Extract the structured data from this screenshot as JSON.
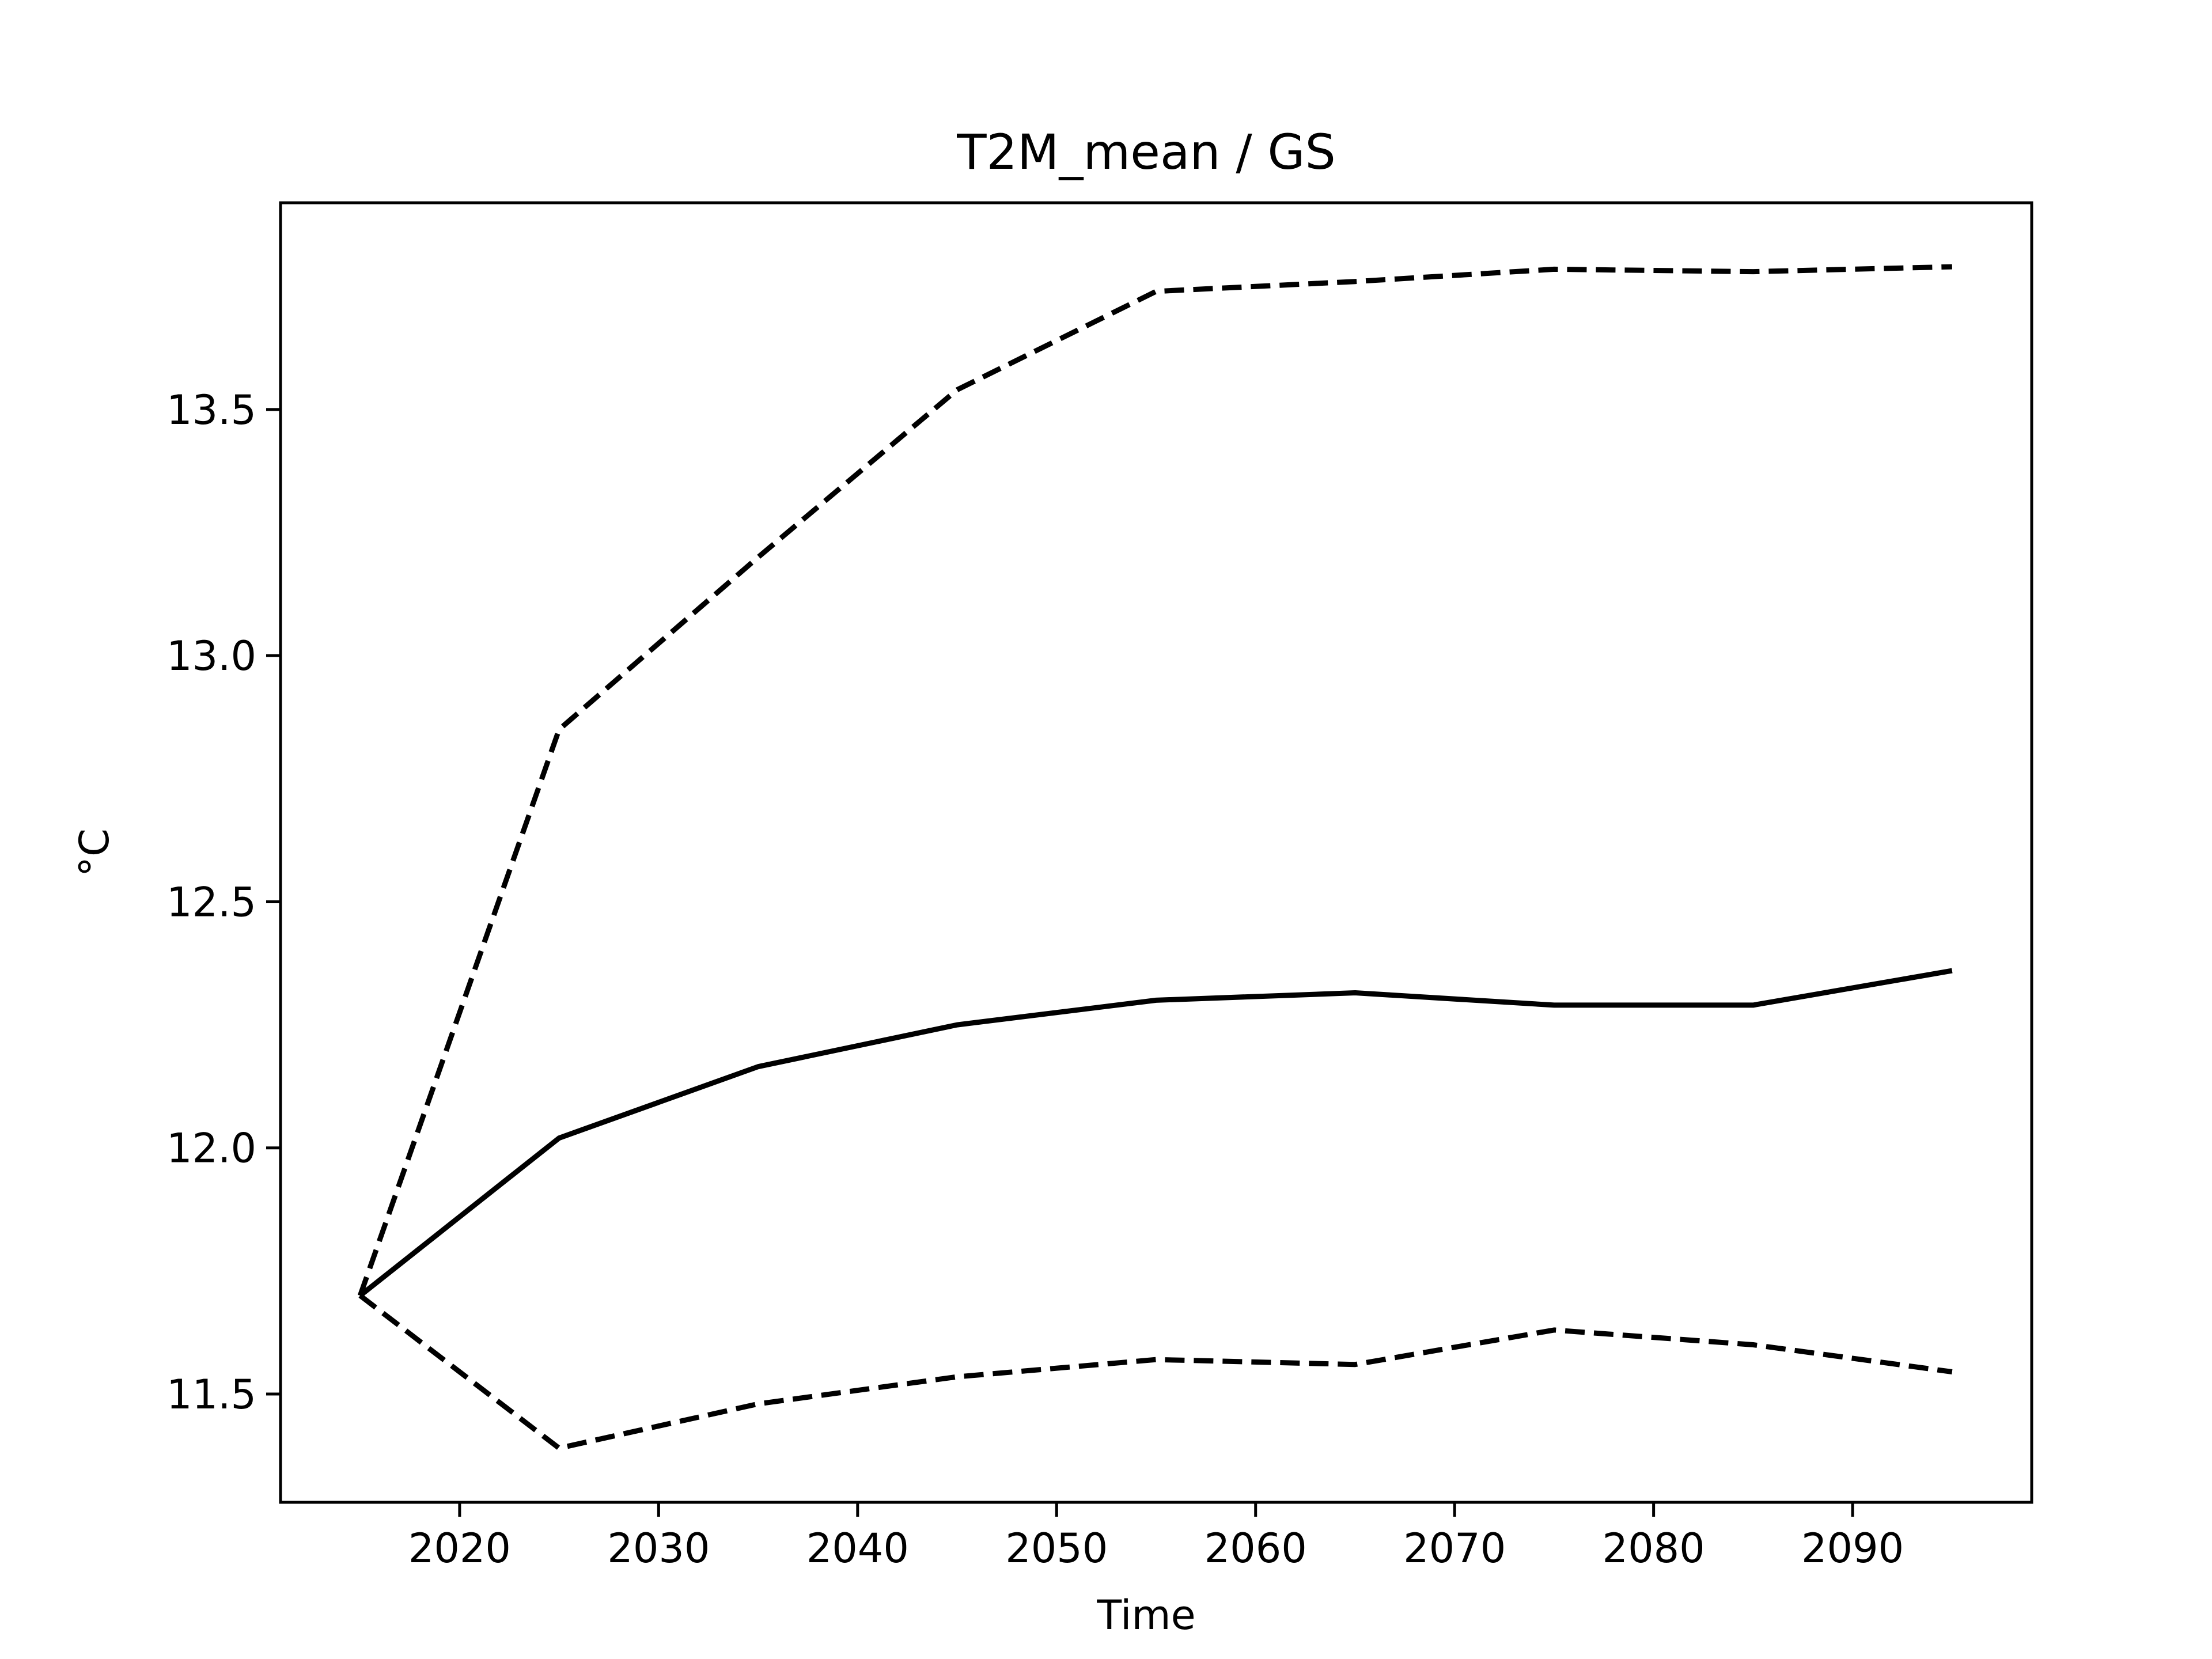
{
  "chart_data": {
    "type": "line",
    "title": "T2M_mean / GS",
    "xlabel": "Time",
    "ylabel": "°C",
    "xlim": [
      2011,
      2099
    ],
    "ylim": [
      11.28,
      13.92
    ],
    "xticks": [
      2020,
      2030,
      2040,
      2050,
      2060,
      2070,
      2080,
      2090
    ],
    "yticks": [
      11.5,
      12.0,
      12.5,
      13.0,
      13.5
    ],
    "ytick_labels": [
      "11.5",
      "12.0",
      "12.5",
      "13.0",
      "13.5"
    ],
    "grid": false,
    "legend": false,
    "x": [
      2015,
      2025,
      2035,
      2045,
      2055,
      2065,
      2075,
      2085,
      2095
    ],
    "series": [
      {
        "style": "dashed",
        "color": "#000000",
        "values": [
          11.7,
          12.85,
          13.2,
          13.54,
          13.74,
          13.76,
          13.785,
          13.78,
          13.79
        ]
      },
      {
        "style": "solid",
        "color": "#000000",
        "values": [
          11.7,
          12.02,
          12.165,
          12.25,
          12.3,
          12.315,
          12.29,
          12.29,
          12.36
        ]
      },
      {
        "style": "dashed",
        "color": "#000000",
        "values": [
          11.7,
          11.39,
          11.48,
          11.535,
          11.57,
          11.56,
          11.63,
          11.6,
          11.545
        ]
      }
    ]
  }
}
